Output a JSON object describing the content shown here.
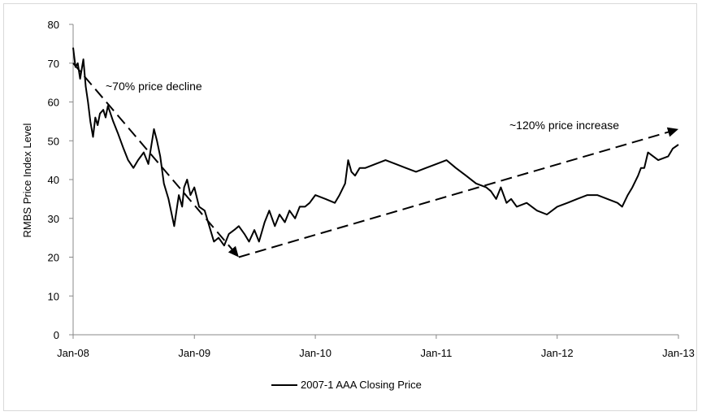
{
  "chart_data": {
    "type": "line",
    "title": "",
    "xlabel": "",
    "ylabel": "RMBS Price Index Level",
    "ylim": [
      0,
      80
    ],
    "y_ticks": [
      0,
      10,
      20,
      30,
      40,
      50,
      60,
      70,
      80
    ],
    "x_ticks": [
      "Jan-08",
      "Jan-09",
      "Jan-10",
      "Jan-11",
      "Jan-12",
      "Jan-13"
    ],
    "grid": false,
    "legend_position": "bottom",
    "series": [
      {
        "name": "2007-1 AAA Closing Price",
        "color": "#000000",
        "x": [
          "2008-01-01",
          "2008-01-08",
          "2008-01-15",
          "2008-01-22",
          "2008-02-01",
          "2008-02-08",
          "2008-02-15",
          "2008-02-22",
          "2008-03-01",
          "2008-03-08",
          "2008-03-15",
          "2008-03-22",
          "2008-04-01",
          "2008-04-08",
          "2008-04-15",
          "2008-05-01",
          "2008-05-15",
          "2008-06-01",
          "2008-06-15",
          "2008-07-01",
          "2008-07-15",
          "2008-08-01",
          "2008-08-15",
          "2008-09-01",
          "2008-09-10",
          "2008-09-20",
          "2008-10-01",
          "2008-10-15",
          "2008-11-01",
          "2008-11-15",
          "2008-11-25",
          "2008-12-01",
          "2008-12-10",
          "2008-12-20",
          "2009-01-01",
          "2009-01-15",
          "2009-02-01",
          "2009-02-15",
          "2009-03-01",
          "2009-03-15",
          "2009-04-01",
          "2009-04-15",
          "2009-05-01",
          "2009-05-15",
          "2009-06-01",
          "2009-06-15",
          "2009-07-01",
          "2009-07-15",
          "2009-08-01",
          "2009-08-15",
          "2009-09-01",
          "2009-09-15",
          "2009-10-01",
          "2009-10-15",
          "2009-11-01",
          "2009-11-15",
          "2009-12-01",
          "2009-12-15",
          "2010-01-01",
          "2010-02-01",
          "2010-03-01",
          "2010-03-15",
          "2010-04-01",
          "2010-04-10",
          "2010-04-20",
          "2010-05-01",
          "2010-05-15",
          "2010-06-01",
          "2010-07-01",
          "2010-08-01",
          "2010-09-01",
          "2010-10-01",
          "2010-11-01",
          "2010-12-01",
          "2011-01-01",
          "2011-02-01",
          "2011-03-01",
          "2011-04-01",
          "2011-05-01",
          "2011-06-01",
          "2011-06-15",
          "2011-07-01",
          "2011-07-15",
          "2011-08-01",
          "2011-08-15",
          "2011-09-01",
          "2011-10-01",
          "2011-11-01",
          "2011-12-01",
          "2012-01-01",
          "2012-02-01",
          "2012-03-01",
          "2012-04-01",
          "2012-05-01",
          "2012-06-01",
          "2012-07-01",
          "2012-07-15",
          "2012-08-01",
          "2012-08-15",
          "2012-09-01",
          "2012-09-10",
          "2012-09-20",
          "2012-10-01",
          "2012-11-01",
          "2012-12-01",
          "2012-12-15",
          "2013-01-01"
        ],
        "values": [
          74,
          69,
          70,
          66,
          71,
          64,
          60,
          55,
          51,
          56,
          54,
          57,
          58,
          56,
          59,
          55,
          52,
          48,
          45,
          43,
          45,
          47,
          44,
          53,
          50,
          46,
          39,
          35,
          28,
          36,
          33,
          38,
          40,
          36,
          38,
          33,
          32,
          28,
          24,
          25,
          23,
          26,
          27,
          28,
          26,
          24,
          27,
          24,
          29,
          32,
          28,
          31,
          29,
          32,
          30,
          33,
          33,
          34,
          36,
          35,
          34,
          36,
          39,
          45,
          42,
          41,
          43,
          43,
          44,
          45,
          44,
          43,
          42,
          43,
          44,
          45,
          43,
          41,
          39,
          38,
          37,
          35,
          38,
          34,
          35,
          33,
          34,
          32,
          31,
          33,
          34,
          35,
          36,
          36,
          35,
          34,
          33,
          36,
          38,
          41,
          43,
          43,
          47,
          45,
          46,
          48,
          49
        ]
      }
    ],
    "annotations": [
      {
        "text": "~70% price decline",
        "from": [
          "2008-01-01",
          70
        ],
        "to": [
          "2009-05-15",
          20
        ]
      },
      {
        "text": "~120% price increase",
        "from": [
          "2009-05-15",
          20
        ],
        "to": [
          "2013-01-01",
          53
        ]
      }
    ]
  }
}
